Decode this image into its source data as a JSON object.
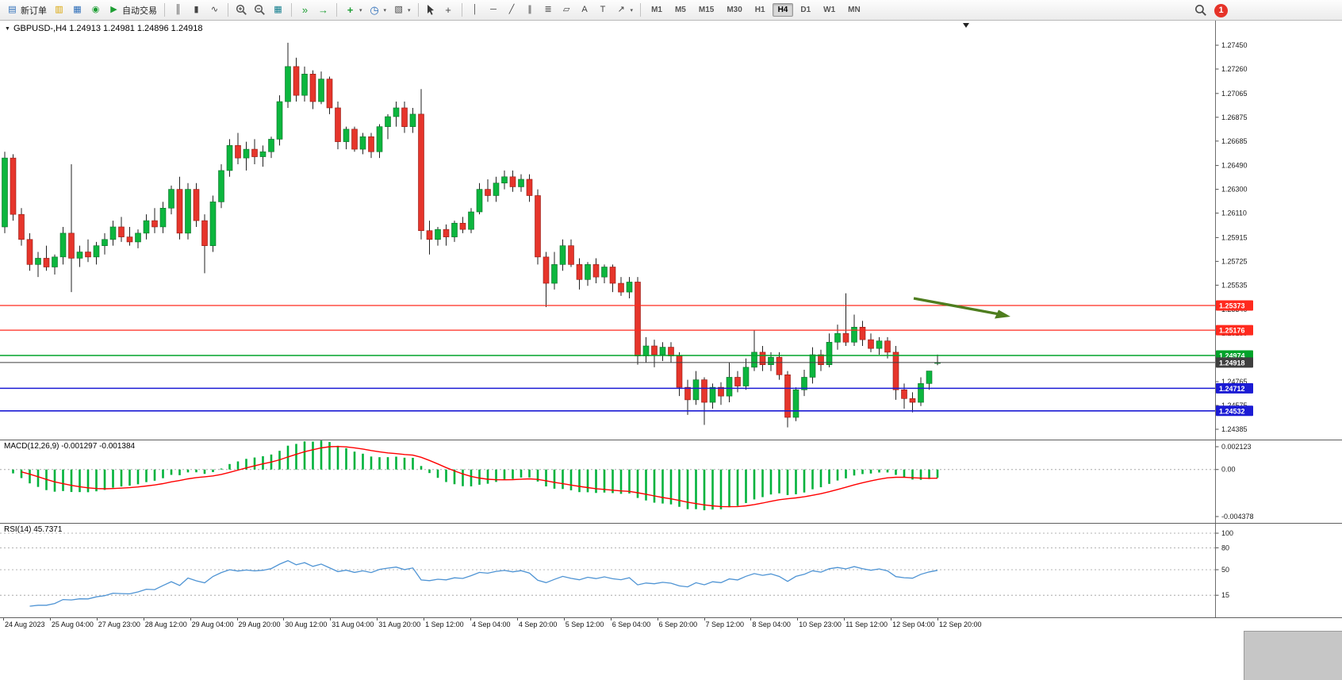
{
  "toolbar": {
    "new_order_label": "新订单",
    "auto_trading_label": "自动交易",
    "timeframes": [
      "M1",
      "M5",
      "M15",
      "M30",
      "H1",
      "H4",
      "D1",
      "W1",
      "MN"
    ],
    "active_timeframe": "H4",
    "notification_count": "1"
  },
  "icons": {
    "new-order": "▤",
    "profiles": "▥",
    "data-window": "▦",
    "news": "◉",
    "auto-trading-play": "▶",
    "bar-chart": "║",
    "candlestick-chart": "▮",
    "line-chart": "∿",
    "tile-windows": "▦",
    "chart-shift": "»",
    "auto-scroll": "→",
    "indicator-add": "+",
    "periods": "◷",
    "templates": "▧",
    "crosshair": "+",
    "vertical-line": "│",
    "horizontal-line": "─",
    "trendline": "╱",
    "channel": "∥",
    "fibonacci": "≣",
    "shapes": "▱",
    "text-tool": "A",
    "text-label": "T",
    "arrow-tool": "↗",
    "caret": "▾",
    "header-collapse": "▼"
  },
  "chart_data": {
    "type": "candlestick",
    "symbol": "GBPUSD-",
    "timeframe": "H4",
    "header_text": "GBPUSD-,H4  1.24913 1.24981 1.24896 1.24918",
    "ohlc": {
      "open": 1.24913,
      "high": 1.24981,
      "low": 1.24896,
      "close": 1.24918
    },
    "y_min": 1.24385,
    "y_max": 1.2745,
    "y_axis_ticks": [
      "1.27450",
      "1.27260",
      "1.27065",
      "1.26875",
      "1.26685",
      "1.26490",
      "1.26300",
      "1.26110",
      "1.25915",
      "1.25725",
      "1.25535",
      "1.25340",
      "1.25150",
      "1.24955",
      "1.24765",
      "1.24575",
      "1.24385"
    ],
    "x_axis_labels": [
      "24 Aug 2023",
      "25 Aug 04:00",
      "27 Aug 23:00",
      "28 Aug 12:00",
      "29 Aug 04:00",
      "29 Aug 20:00",
      "30 Aug 12:00",
      "31 Aug 04:00",
      "31 Aug 20:00",
      "1 Sep 12:00",
      "4 Sep 04:00",
      "4 Sep 20:00",
      "5 Sep 12:00",
      "6 Sep 04:00",
      "6 Sep 20:00",
      "7 Sep 12:00",
      "8 Sep 04:00",
      "10 Sep 23:00",
      "11 Sep 12:00",
      "12 Sep 04:00",
      "12 Sep 20:00"
    ],
    "colors": {
      "bull": "#0cb63e",
      "bear": "#e6352b",
      "bull_edge": "#0a6b26",
      "bear_edge": "#8f1610",
      "wick": "#222222",
      "axis_line": "#6e6e6e",
      "arrow": "#4e7d1e"
    },
    "levels": [
      {
        "label": "1.25373",
        "price": 1.25373,
        "color": "#ff2a1e",
        "width": 1.2,
        "role": "resistance-line"
      },
      {
        "label": "1.25176",
        "price": 1.25176,
        "color": "#ff2a1e",
        "width": 1.2,
        "role": "resistance-line"
      },
      {
        "label": "1.24974",
        "price": 1.24974,
        "color": "#00a32a",
        "width": 1.5,
        "role": "support-line"
      },
      {
        "label": "1.24918",
        "price": 1.24918,
        "color": "#3f3f3f",
        "width": 1.0,
        "role": "bid-line"
      },
      {
        "label": "1.24712",
        "price": 1.24712,
        "color": "#1b1bd4",
        "width": 1.6,
        "role": "support-line"
      },
      {
        "label": "1.24532",
        "price": 1.24532,
        "color": "#1b1bd4",
        "width": 1.6,
        "role": "support-line"
      }
    ],
    "annotations": {
      "trend_arrow": {
        "direction": "down-right",
        "color": "#4e7d1e"
      }
    },
    "candles": [
      [
        1.26,
        1.266,
        1.2595,
        1.2655
      ],
      [
        1.2655,
        1.2658,
        1.2605,
        1.261
      ],
      [
        1.261,
        1.2615,
        1.2585,
        1.259
      ],
      [
        1.259,
        1.2595,
        1.2565,
        1.257
      ],
      [
        1.257,
        1.258,
        1.256,
        1.2575
      ],
      [
        1.2575,
        1.2585,
        1.2565,
        1.2568
      ],
      [
        1.2568,
        1.2578,
        1.2562,
        1.2576
      ],
      [
        1.2576,
        1.26,
        1.257,
        1.2595
      ],
      [
        1.2595,
        1.265,
        1.2548,
        1.2575
      ],
      [
        1.2575,
        1.2585,
        1.2568,
        1.258
      ],
      [
        1.258,
        1.259,
        1.2572,
        1.2576
      ],
      [
        1.2576,
        1.2588,
        1.257,
        1.2585
      ],
      [
        1.2585,
        1.2595,
        1.2578,
        1.259
      ],
      [
        1.259,
        1.2605,
        1.2585,
        1.26
      ],
      [
        1.26,
        1.2608,
        1.2588,
        1.2592
      ],
      [
        1.2592,
        1.26,
        1.2585,
        1.2588
      ],
      [
        1.2588,
        1.2598,
        1.2583,
        1.2595
      ],
      [
        1.2595,
        1.261,
        1.259,
        1.2605
      ],
      [
        1.2605,
        1.2615,
        1.2595,
        1.26
      ],
      [
        1.26,
        1.262,
        1.2595,
        1.2615
      ],
      [
        1.2615,
        1.2633,
        1.261,
        1.263
      ],
      [
        1.263,
        1.264,
        1.259,
        1.2595
      ],
      [
        1.2595,
        1.2635,
        1.259,
        1.263
      ],
      [
        1.263,
        1.2635,
        1.26,
        1.2605
      ],
      [
        1.2605,
        1.261,
        1.2563,
        1.2585
      ],
      [
        1.2585,
        1.2625,
        1.258,
        1.262
      ],
      [
        1.262,
        1.265,
        1.2615,
        1.2645
      ],
      [
        1.2645,
        1.267,
        1.264,
        1.2665
      ],
      [
        1.2665,
        1.2675,
        1.265,
        1.2655
      ],
      [
        1.2655,
        1.2668,
        1.2645,
        1.2662
      ],
      [
        1.2662,
        1.267,
        1.265,
        1.2656
      ],
      [
        1.2656,
        1.2665,
        1.2648,
        1.266
      ],
      [
        1.266,
        1.2672,
        1.2655,
        1.267
      ],
      [
        1.267,
        1.2705,
        1.2665,
        1.27
      ],
      [
        1.27,
        1.2747,
        1.2695,
        1.2728
      ],
      [
        1.2728,
        1.2735,
        1.27,
        1.2705
      ],
      [
        1.2705,
        1.2728,
        1.27,
        1.2722
      ],
      [
        1.2722,
        1.2725,
        1.2694,
        1.27
      ],
      [
        1.27,
        1.2724,
        1.2698,
        1.2718
      ],
      [
        1.2718,
        1.272,
        1.269,
        1.2695
      ],
      [
        1.2695,
        1.27,
        1.2662,
        1.2668
      ],
      [
        1.2668,
        1.268,
        1.2662,
        1.2678
      ],
      [
        1.2678,
        1.268,
        1.266,
        1.2662
      ],
      [
        1.2662,
        1.2675,
        1.2658,
        1.2672
      ],
      [
        1.2672,
        1.2675,
        1.2655,
        1.266
      ],
      [
        1.266,
        1.2682,
        1.2655,
        1.268
      ],
      [
        1.268,
        1.269,
        1.267,
        1.2688
      ],
      [
        1.2688,
        1.27,
        1.268,
        1.2695
      ],
      [
        1.2695,
        1.27,
        1.2675,
        1.268
      ],
      [
        1.268,
        1.2695,
        1.2675,
        1.269
      ],
      [
        1.269,
        1.271,
        1.259,
        1.2597
      ],
      [
        1.2597,
        1.2605,
        1.2578,
        1.259
      ],
      [
        1.259,
        1.26,
        1.2585,
        1.2598
      ],
      [
        1.2598,
        1.2602,
        1.2585,
        1.2592
      ],
      [
        1.2592,
        1.2605,
        1.2588,
        1.2603
      ],
      [
        1.2603,
        1.2608,
        1.2595,
        1.2598
      ],
      [
        1.2598,
        1.2615,
        1.2595,
        1.2612
      ],
      [
        1.2612,
        1.2635,
        1.261,
        1.263
      ],
      [
        1.263,
        1.2638,
        1.262,
        1.2625
      ],
      [
        1.2625,
        1.264,
        1.262,
        1.2635
      ],
      [
        1.2635,
        1.2645,
        1.263,
        1.264
      ],
      [
        1.264,
        1.2645,
        1.2628,
        1.2632
      ],
      [
        1.2632,
        1.2642,
        1.2628,
        1.2638
      ],
      [
        1.2638,
        1.2642,
        1.262,
        1.2625
      ],
      [
        1.2625,
        1.263,
        1.257,
        1.2576
      ],
      [
        1.2576,
        1.258,
        1.2536,
        1.2555
      ],
      [
        1.2555,
        1.258,
        1.255,
        1.257
      ],
      [
        1.257,
        1.259,
        1.2565,
        1.2585
      ],
      [
        1.2585,
        1.259,
        1.2568,
        1.257
      ],
      [
        1.257,
        1.2575,
        1.255,
        1.2558
      ],
      [
        1.2558,
        1.2572,
        1.2553,
        1.257
      ],
      [
        1.257,
        1.2575,
        1.2555,
        1.256
      ],
      [
        1.256,
        1.257,
        1.2555,
        1.2568
      ],
      [
        1.2568,
        1.257,
        1.2548,
        1.2555
      ],
      [
        1.2555,
        1.256,
        1.2545,
        1.2548
      ],
      [
        1.2548,
        1.256,
        1.2543,
        1.2556
      ],
      [
        1.2556,
        1.256,
        1.249,
        1.2497
      ],
      [
        1.2497,
        1.2512,
        1.2492,
        1.2505
      ],
      [
        1.2505,
        1.251,
        1.2488,
        1.2498
      ],
      [
        1.2498,
        1.2508,
        1.2493,
        1.2504
      ],
      [
        1.2504,
        1.2508,
        1.2492,
        1.2497
      ],
      [
        1.2497,
        1.25,
        1.2465,
        1.2472
      ],
      [
        1.2472,
        1.2478,
        1.245,
        1.2462
      ],
      [
        1.2462,
        1.2485,
        1.2458,
        1.2478
      ],
      [
        1.2478,
        1.248,
        1.2442,
        1.246
      ],
      [
        1.246,
        1.2475,
        1.2455,
        1.2472
      ],
      [
        1.2472,
        1.2476,
        1.2458,
        1.2465
      ],
      [
        1.2465,
        1.2492,
        1.246,
        1.248
      ],
      [
        1.248,
        1.2485,
        1.2468,
        1.2473
      ],
      [
        1.2473,
        1.2495,
        1.247,
        1.2488
      ],
      [
        1.2488,
        1.2518,
        1.2485,
        1.25
      ],
      [
        1.25,
        1.2505,
        1.2485,
        1.249
      ],
      [
        1.249,
        1.25,
        1.2485,
        1.2496
      ],
      [
        1.2496,
        1.25,
        1.2478,
        1.2482
      ],
      [
        1.2482,
        1.2485,
        1.244,
        1.2448
      ],
      [
        1.2448,
        1.2472,
        1.2445,
        1.247
      ],
      [
        1.247,
        1.2486,
        1.2465,
        1.248
      ],
      [
        1.248,
        1.2504,
        1.2475,
        1.2498
      ],
      [
        1.2498,
        1.2502,
        1.2485,
        1.249
      ],
      [
        1.249,
        1.2515,
        1.2488,
        1.2508
      ],
      [
        1.2508,
        1.2522,
        1.2502,
        1.2515
      ],
      [
        1.2515,
        1.2547,
        1.2505,
        1.2508
      ],
      [
        1.2508,
        1.253,
        1.2505,
        1.252
      ],
      [
        1.252,
        1.2525,
        1.2505,
        1.251
      ],
      [
        1.251,
        1.2515,
        1.25,
        1.2503
      ],
      [
        1.2503,
        1.2512,
        1.2498,
        1.2509
      ],
      [
        1.2509,
        1.2512,
        1.2495,
        1.25
      ],
      [
        1.25,
        1.2505,
        1.2462,
        1.247
      ],
      [
        1.247,
        1.2475,
        1.2455,
        1.2463
      ],
      [
        1.2463,
        1.2468,
        1.2452,
        1.246
      ],
      [
        1.246,
        1.248,
        1.2457,
        1.2475
      ],
      [
        1.2475,
        1.2485,
        1.247,
        1.2485
      ],
      [
        1.24913,
        1.24981,
        1.24896,
        1.24918
      ]
    ],
    "indicators": [
      {
        "name": "MACD",
        "params": [
          12,
          26,
          9
        ],
        "label": "MACD(12,26,9) -0.001297 -0.001384",
        "values_text": [
          "-0.001297",
          "-0.001384"
        ],
        "axis_ticks": [
          "0.002123",
          "0.00",
          "-0.004378"
        ],
        "y_min": -0.004378,
        "y_max": 0.002123,
        "histogram_color": "#00b23c",
        "signal_color": "#ff0000"
      },
      {
        "name": "RSI",
        "params": [
          14
        ],
        "label": "RSI(14) 45.7371",
        "value_text": "45.7371",
        "axis_ticks": [
          "100",
          "80",
          "50",
          "15"
        ],
        "levels": [
          100,
          80,
          50,
          15
        ],
        "line_color": "#4f94d4"
      }
    ]
  }
}
